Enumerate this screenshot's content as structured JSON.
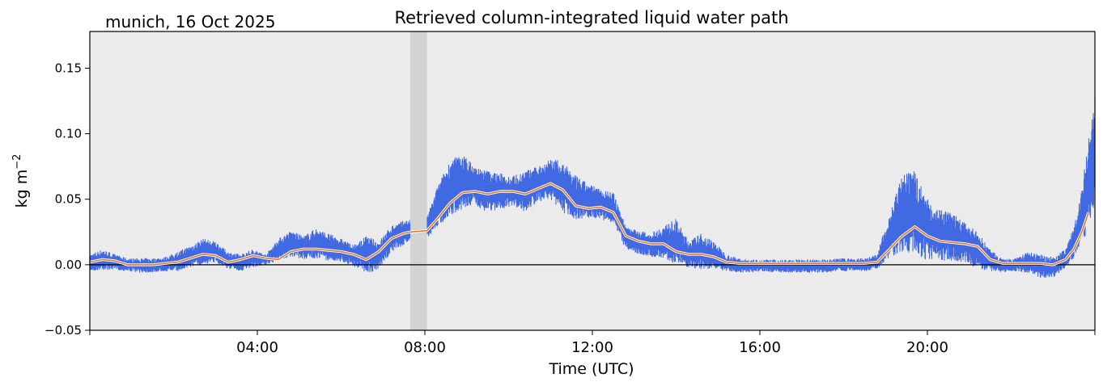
{
  "chart_data": {
    "type": "line",
    "title": "Retrieved column-integrated liquid water path",
    "location_date_label": "munich, 16 Oct 2025",
    "xlabel": "Time (UTC)",
    "ylabel_base": "kg m",
    "ylabel_exponent": "−2",
    "xlim_hours": [
      0,
      24
    ],
    "ylim": [
      -0.05,
      0.178
    ],
    "x_tick_hours": [
      4,
      8,
      12,
      16,
      20
    ],
    "x_tick_labels": [
      "04:00",
      "08:00",
      "12:00",
      "16:00",
      "20:00"
    ],
    "y_ticks": [
      -0.05,
      0.0,
      0.05,
      0.1,
      0.15
    ],
    "y_tick_labels": [
      "−0.05",
      "0.00",
      "0.05",
      "0.10",
      "0.15"
    ],
    "grid": false,
    "reference_line_y": 0.0,
    "shaded_interval_hours": [
      7.65,
      8.05
    ],
    "colors": {
      "plot_background": "#ebebeb",
      "shaded_band": "#d3d3d3",
      "raw_series": "#4169e1",
      "smoothed_series": "#e07a2e",
      "smoothed_outline": "#ffffff",
      "reference_line": "#000000"
    },
    "series": [
      {
        "role": "raw",
        "x_hours": [
          0.0,
          0.3,
          0.6,
          0.9,
          1.2,
          1.5,
          1.8,
          2.1,
          2.4,
          2.7,
          3.0,
          3.3,
          3.6,
          3.9,
          4.2,
          4.5,
          4.8,
          5.1,
          5.4,
          5.7,
          6.0,
          6.3,
          6.6,
          6.9,
          7.2,
          7.5,
          7.65,
          8.05,
          8.3,
          8.6,
          8.9,
          9.2,
          9.5,
          9.8,
          10.1,
          10.4,
          10.7,
          11.0,
          11.3,
          11.6,
          11.9,
          12.2,
          12.5,
          12.8,
          13.1,
          13.4,
          13.7,
          14.0,
          14.3,
          14.6,
          14.9,
          15.2,
          15.5,
          15.8,
          16.1,
          16.4,
          16.7,
          17.0,
          17.3,
          17.6,
          17.9,
          18.2,
          18.5,
          18.8,
          19.1,
          19.4,
          19.7,
          20.0,
          20.3,
          20.6,
          20.9,
          21.2,
          21.5,
          21.8,
          22.1,
          22.4,
          22.7,
          23.0,
          23.3,
          23.5,
          23.7,
          23.85,
          24.0
        ],
        "y_low": [
          -0.005,
          -0.004,
          -0.004,
          -0.005,
          -0.006,
          -0.006,
          -0.005,
          -0.005,
          -0.002,
          0.0,
          0.002,
          -0.003,
          -0.005,
          -0.002,
          0.0,
          0.003,
          0.006,
          0.004,
          0.005,
          0.003,
          0.002,
          -0.001,
          -0.006,
          -0.005,
          0.01,
          0.015,
          0.018,
          0.02,
          0.028,
          0.038,
          0.042,
          0.045,
          0.04,
          0.042,
          0.045,
          0.04,
          0.048,
          0.05,
          0.04,
          0.034,
          0.036,
          0.035,
          0.03,
          0.012,
          0.008,
          0.006,
          0.005,
          0.0,
          -0.002,
          -0.004,
          -0.003,
          -0.005,
          -0.006,
          -0.006,
          -0.005,
          -0.006,
          -0.006,
          -0.006,
          -0.006,
          -0.006,
          -0.005,
          -0.005,
          -0.005,
          -0.003,
          0.005,
          0.01,
          0.005,
          0.004,
          0.002,
          0.002,
          0.002,
          -0.003,
          -0.005,
          -0.006,
          -0.005,
          -0.006,
          -0.01,
          -0.01,
          -0.003,
          0.005,
          0.015,
          0.03,
          0.035
        ],
        "y_high": [
          0.008,
          0.012,
          0.008,
          0.005,
          0.005,
          0.005,
          0.006,
          0.01,
          0.015,
          0.02,
          0.018,
          0.01,
          0.008,
          0.012,
          0.008,
          0.02,
          0.026,
          0.022,
          0.028,
          0.024,
          0.02,
          0.015,
          0.022,
          0.018,
          0.03,
          0.034,
          0.035,
          0.036,
          0.06,
          0.08,
          0.085,
          0.075,
          0.072,
          0.07,
          0.068,
          0.072,
          0.075,
          0.082,
          0.078,
          0.068,
          0.062,
          0.058,
          0.055,
          0.03,
          0.026,
          0.024,
          0.03,
          0.035,
          0.018,
          0.024,
          0.018,
          0.008,
          0.005,
          0.004,
          0.004,
          0.004,
          0.004,
          0.004,
          0.004,
          0.004,
          0.005,
          0.005,
          0.005,
          0.008,
          0.04,
          0.068,
          0.072,
          0.05,
          0.042,
          0.04,
          0.032,
          0.025,
          0.012,
          0.004,
          0.005,
          0.01,
          0.008,
          0.006,
          0.012,
          0.03,
          0.06,
          0.1,
          0.128
        ]
      },
      {
        "role": "smoothed",
        "x_hours": [
          0.0,
          0.3,
          0.6,
          0.9,
          1.2,
          1.5,
          1.8,
          2.1,
          2.4,
          2.7,
          3.0,
          3.3,
          3.6,
          3.9,
          4.2,
          4.5,
          4.8,
          5.1,
          5.4,
          5.7,
          6.0,
          6.3,
          6.6,
          6.9,
          7.2,
          7.5,
          7.65,
          8.05,
          8.3,
          8.6,
          8.9,
          9.2,
          9.5,
          9.8,
          10.1,
          10.4,
          10.7,
          11.0,
          11.3,
          11.6,
          11.9,
          12.2,
          12.5,
          12.8,
          13.1,
          13.4,
          13.7,
          14.0,
          14.3,
          14.6,
          14.9,
          15.2,
          15.5,
          15.8,
          16.1,
          16.4,
          16.7,
          17.0,
          17.3,
          17.6,
          17.9,
          18.2,
          18.5,
          18.8,
          19.1,
          19.4,
          19.7,
          20.0,
          20.3,
          20.6,
          20.9,
          21.2,
          21.5,
          21.8,
          22.1,
          22.4,
          22.7,
          23.0,
          23.3,
          23.5,
          23.7,
          23.85
        ],
        "values": [
          0.002,
          0.004,
          0.003,
          0.0,
          0.0,
          0.0,
          0.001,
          0.002,
          0.005,
          0.008,
          0.007,
          0.002,
          0.004,
          0.007,
          0.005,
          0.004,
          0.01,
          0.012,
          0.012,
          0.011,
          0.01,
          0.008,
          0.004,
          0.01,
          0.02,
          0.024,
          0.025,
          0.026,
          0.035,
          0.047,
          0.055,
          0.056,
          0.054,
          0.056,
          0.056,
          0.054,
          0.058,
          0.062,
          0.057,
          0.045,
          0.043,
          0.044,
          0.04,
          0.022,
          0.018,
          0.016,
          0.016,
          0.01,
          0.008,
          0.008,
          0.006,
          0.002,
          0.001,
          0.001,
          0.001,
          0.001,
          0.001,
          0.001,
          0.001,
          0.001,
          0.001,
          0.001,
          0.001,
          0.002,
          0.012,
          0.022,
          0.029,
          0.022,
          0.018,
          0.017,
          0.016,
          0.014,
          0.004,
          0.001,
          0.001,
          0.001,
          0.001,
          0.0,
          0.004,
          0.012,
          0.026,
          0.04
        ]
      }
    ]
  }
}
